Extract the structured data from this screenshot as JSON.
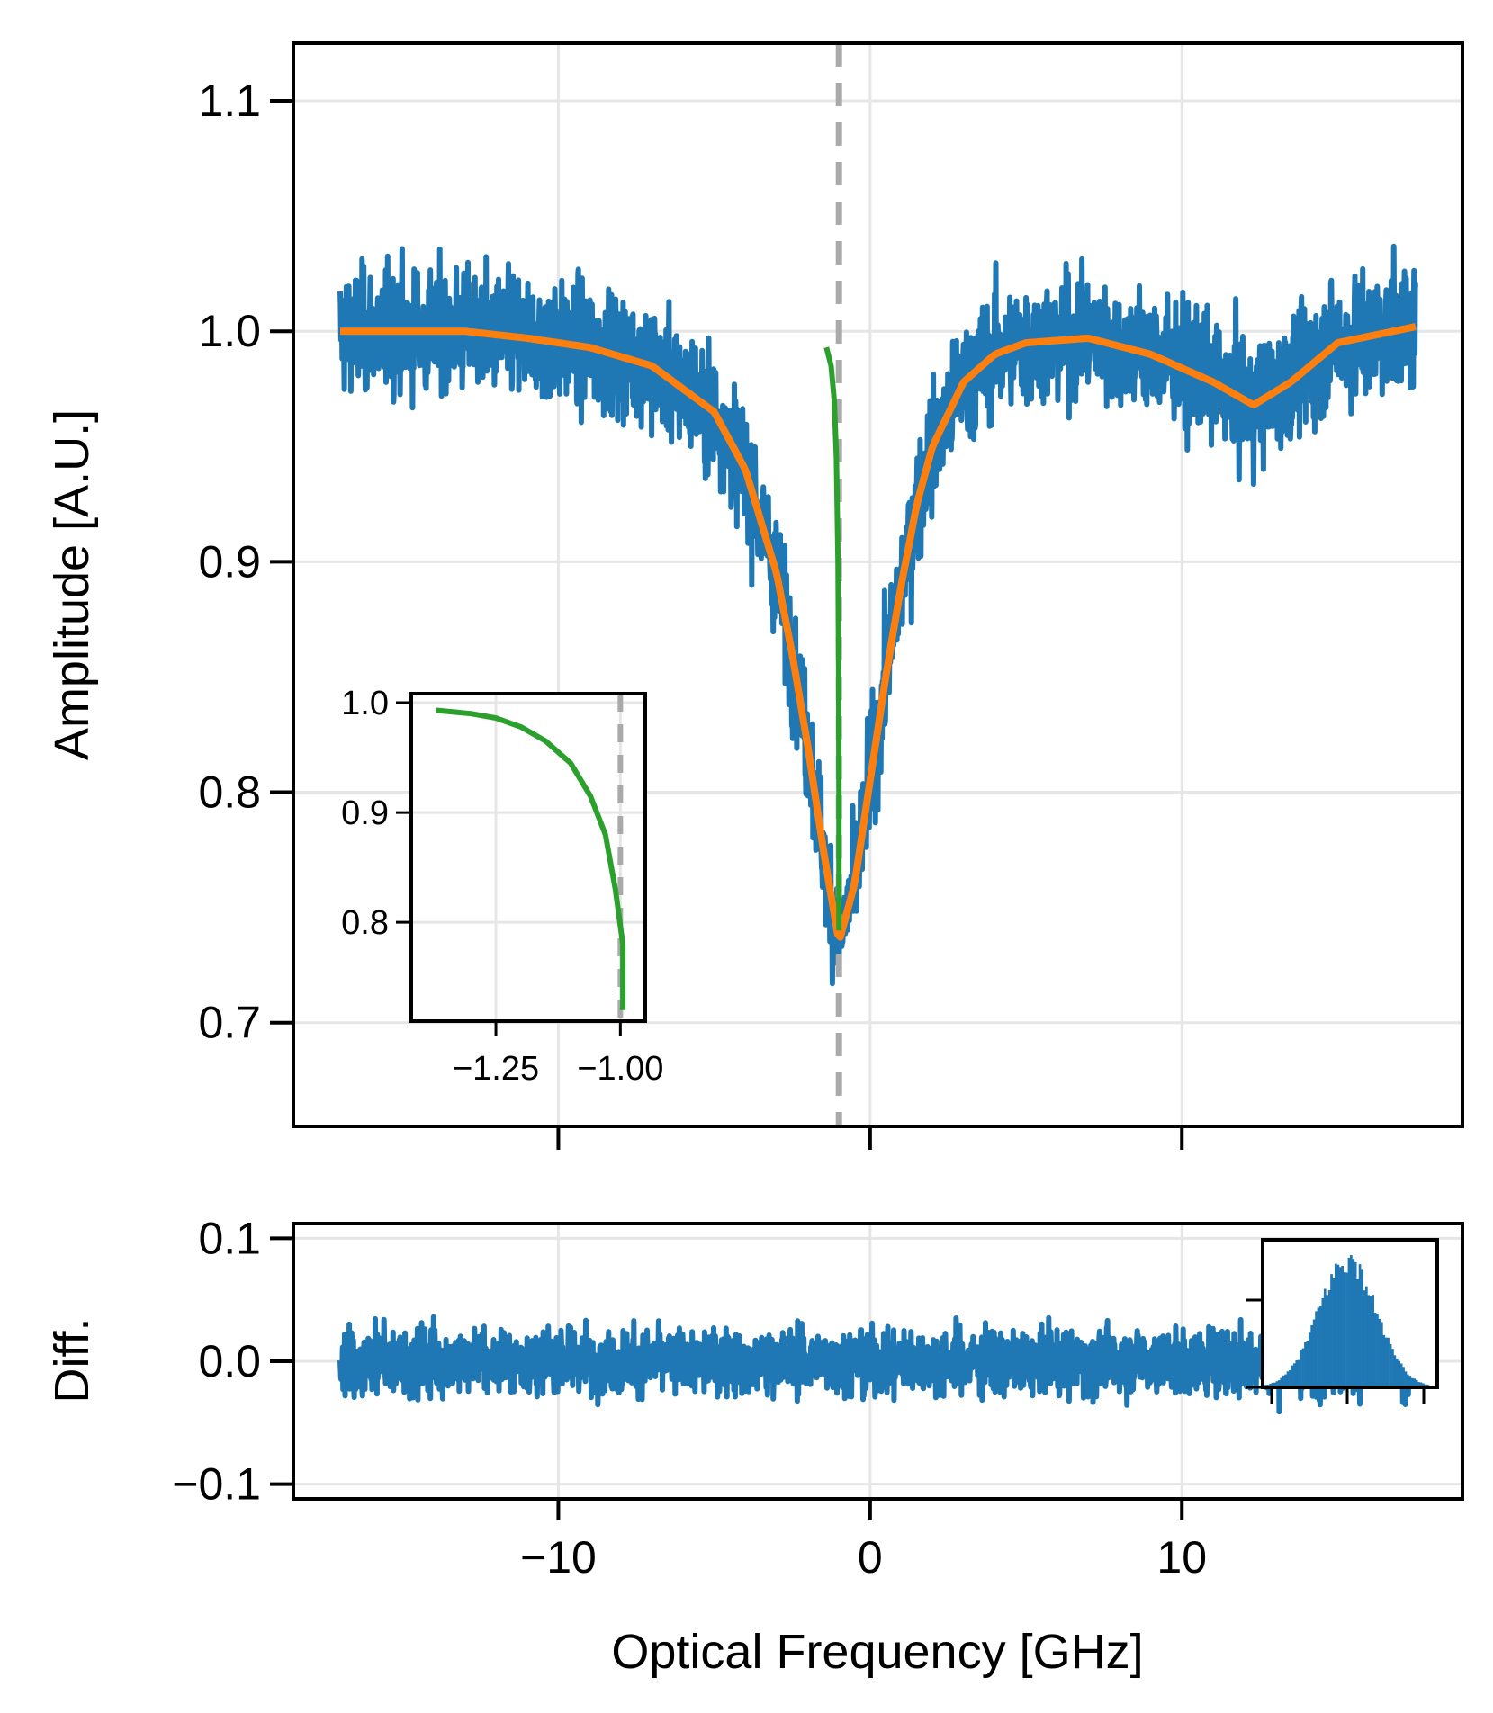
{
  "chart_data": [
    {
      "panel": "main",
      "type": "line",
      "title": "",
      "ylabel": "Amplitude [A.U.]",
      "xlabel": "",
      "xlim": [
        -18.5,
        19.0
      ],
      "ylim": [
        0.655,
        1.125
      ],
      "xticks": [
        -10,
        0,
        10
      ],
      "xtick_labels_shown": false,
      "yticks": [
        0.7,
        0.8,
        0.9,
        1.0,
        1.1
      ],
      "ytick_labels": [
        "0.7",
        "0.8",
        "0.9",
        "1.0",
        "1.1"
      ],
      "grid": true,
      "vline": {
        "x": -1.0,
        "style": "dashed",
        "color": "#aaaaaa"
      },
      "series": [
        {
          "kind": "noisy-measurement",
          "color": "#1f77b4",
          "x_range": [
            -17.0,
            17.5
          ],
          "x": [
            -17,
            -15,
            -13,
            -11,
            -9,
            -7,
            -5,
            -4,
            -3,
            -2.5,
            -2,
            -1.5,
            -1.0,
            -0.5,
            0,
            0.5,
            1,
            1.5,
            2,
            3,
            4,
            5,
            7,
            9,
            11,
            12.3,
            13.5,
            15,
            17.5
          ],
          "y": [
            1.0,
            1.0,
            1.0,
            0.997,
            0.993,
            0.985,
            0.965,
            0.94,
            0.895,
            0.86,
            0.82,
            0.775,
            0.735,
            0.76,
            0.805,
            0.85,
            0.89,
            0.925,
            0.95,
            0.978,
            0.99,
            0.995,
            0.997,
            0.99,
            0.978,
            0.968,
            0.978,
            0.995,
            1.002
          ],
          "noise_amplitude": 0.04
        },
        {
          "kind": "fit",
          "color": "#ff7f0e",
          "x": [
            -17,
            -15,
            -13,
            -11,
            -9,
            -7,
            -5,
            -4,
            -3,
            -2.5,
            -2,
            -1.5,
            -1.0,
            -0.5,
            0,
            0.5,
            1,
            1.5,
            2,
            3,
            4,
            5,
            7,
            9,
            11,
            12.3,
            13.5,
            15,
            17.5
          ],
          "y": [
            1.0,
            1.0,
            1.0,
            0.997,
            0.993,
            0.985,
            0.965,
            0.94,
            0.895,
            0.86,
            0.82,
            0.775,
            0.735,
            0.76,
            0.805,
            0.85,
            0.89,
            0.925,
            0.95,
            0.978,
            0.99,
            0.995,
            0.997,
            0.99,
            0.978,
            0.968,
            0.978,
            0.995,
            1.002
          ]
        },
        {
          "kind": "trace",
          "color": "#2ca02c",
          "x": [
            -1.4,
            -1.25,
            -1.15,
            -1.08,
            -1.03,
            -1.01,
            -1.0,
            -1.0
          ],
          "y": [
            0.993,
            0.985,
            0.97,
            0.945,
            0.9,
            0.85,
            0.8,
            0.74
          ]
        }
      ]
    },
    {
      "panel": "main-inset",
      "type": "line",
      "xlim": [
        -1.42,
        -0.95
      ],
      "ylim": [
        0.71,
        1.0
      ],
      "xticks": [
        -1.25,
        -1.0
      ],
      "xtick_labels": [
        "−1.25",
        "−1.00"
      ],
      "yticks": [
        0.8,
        0.9,
        1.0
      ],
      "ytick_labels": [
        "0.8",
        "0.9",
        "1.0"
      ],
      "grid": true,
      "vline": {
        "x": -1.0,
        "style": "dashed",
        "color": "#aaaaaa"
      },
      "series": [
        {
          "color": "#2ca02c",
          "x": [
            -1.37,
            -1.3,
            -1.25,
            -1.2,
            -1.15,
            -1.1,
            -1.06,
            -1.03,
            -1.01,
            -0.995,
            -0.995
          ],
          "y": [
            0.993,
            0.99,
            0.986,
            0.978,
            0.965,
            0.945,
            0.915,
            0.88,
            0.83,
            0.78,
            0.72
          ]
        }
      ]
    },
    {
      "panel": "residual",
      "type": "line",
      "ylabel": "Diff.",
      "xlabel": "Optical Frequency [GHz]",
      "xlim": [
        -18.5,
        19.0
      ],
      "ylim": [
        -0.112,
        0.112
      ],
      "xticks": [
        -10,
        0,
        10
      ],
      "xtick_labels": [
        "−10",
        "0",
        "10"
      ],
      "yticks": [
        -0.1,
        0.0,
        0.1
      ],
      "ytick_labels": [
        "−0.1",
        "0.0",
        "0.1"
      ],
      "grid": true,
      "series": [
        {
          "kind": "noisy-residual",
          "color": "#1f77b4",
          "x_range": [
            -17.0,
            17.5
          ],
          "mean": 0.0,
          "noise_amplitude": 0.04
        }
      ]
    },
    {
      "panel": "residual-inset",
      "type": "bar",
      "kind": "histogram",
      "color": "#1f77b4",
      "distribution": "gaussian",
      "xtick_labels_shown": false,
      "ytick_labels_shown": false
    }
  ]
}
